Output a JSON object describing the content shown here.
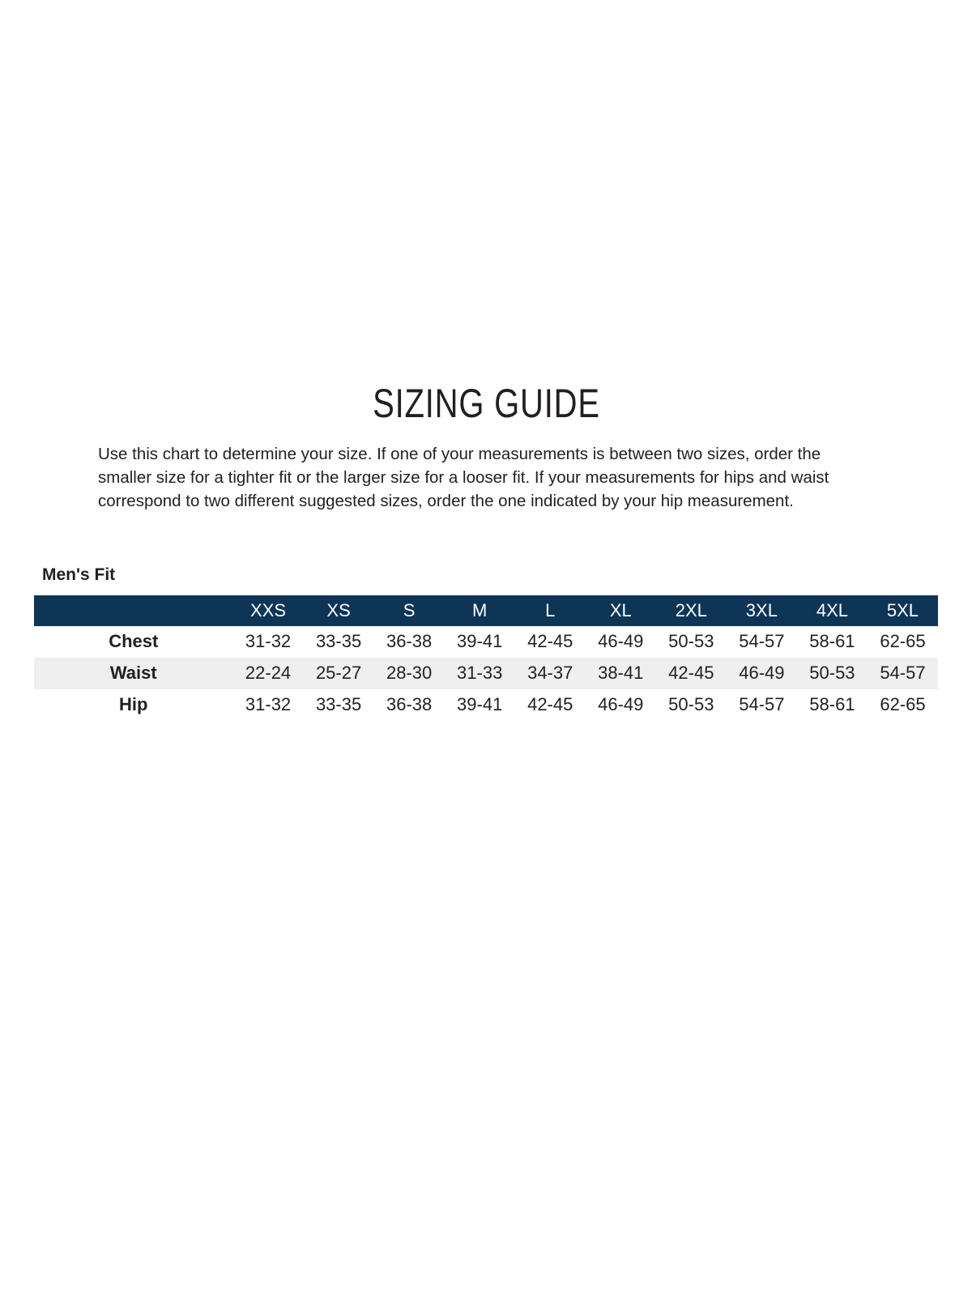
{
  "page": {
    "title": "SIZING GUIDE",
    "intro": "Use this chart to determine your size. If one of your measurements is between two sizes, order the smaller size for a tighter fit or the larger size for a looser fit. If your measurements for hips and waist correspond to two different suggested sizes, order the one indicated by your hip measurement."
  },
  "table": {
    "section_label": "Men's Fit",
    "type": "table",
    "columns": [
      "XXS",
      "XS",
      "S",
      "M",
      "L",
      "XL",
      "2XL",
      "3XL",
      "4XL",
      "5XL"
    ],
    "rows": [
      {
        "label": "Chest",
        "values": [
          "31-32",
          "33-35",
          "36-38",
          "39-41",
          "42-45",
          "46-49",
          "50-53",
          "54-57",
          "58-61",
          "62-65"
        ]
      },
      {
        "label": "Waist",
        "values": [
          "22-24",
          "25-27",
          "28-30",
          "31-33",
          "34-37",
          "38-41",
          "42-45",
          "46-49",
          "50-53",
          "54-57"
        ]
      },
      {
        "label": "Hip",
        "values": [
          "31-32",
          "33-35",
          "36-38",
          "39-41",
          "42-45",
          "46-49",
          "50-53",
          "54-57",
          "58-61",
          "62-65"
        ]
      }
    ]
  },
  "colors": {
    "header_bg": "#0e3456",
    "header_text": "#ffffff",
    "alt_row_bg": "#efefef",
    "text": "#231f20"
  }
}
